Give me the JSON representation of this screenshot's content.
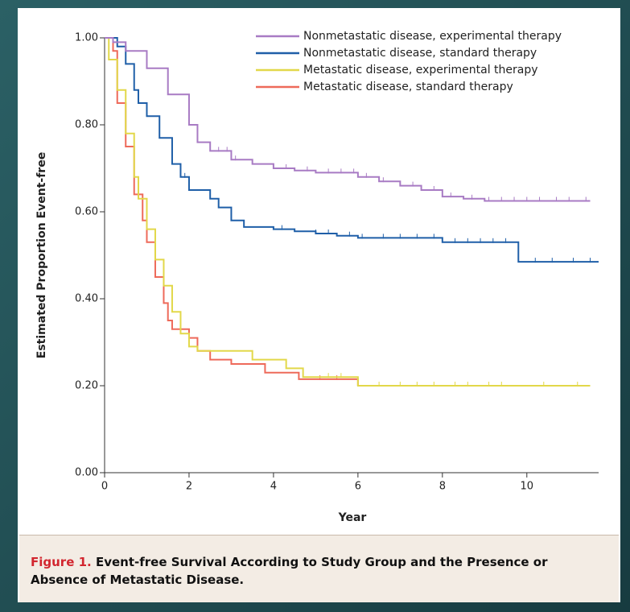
{
  "chart_data": {
    "type": "step",
    "ylabel": "Estimated Proportion Event-free",
    "xlabel": "Year",
    "caption_label": "Figure 1.",
    "caption": "Event-free Survival According to Study Group and the Presence or Absence of Metastatic Disease.",
    "xlim": [
      0,
      11.7
    ],
    "ylim": [
      0,
      1.0
    ],
    "xticks": [
      0,
      2,
      4,
      6,
      8,
      10
    ],
    "yticks": [
      {
        "value": 0,
        "label": "0.00"
      },
      {
        "value": 0.2,
        "label": "0.20"
      },
      {
        "value": 0.4,
        "label": "0.40"
      },
      {
        "value": 0.6,
        "label": "0.60"
      },
      {
        "value": 0.8,
        "label": "0.80"
      },
      {
        "value": 1.0,
        "label": "1.00"
      }
    ],
    "legend": "top-right",
    "series": [
      {
        "name": "Nonmetastatic disease, experimental therapy",
        "color": "#a87bc4",
        "x": [
          0,
          0.2,
          0.5,
          1.0,
          1.5,
          2.0,
          2.2,
          2.5,
          3.0,
          3.5,
          4.0,
          4.5,
          5.0,
          6.0,
          6.5,
          7.0,
          7.5,
          8.0,
          8.5,
          9.0,
          11.5
        ],
        "values": [
          1.0,
          0.99,
          0.97,
          0.93,
          0.87,
          0.8,
          0.76,
          0.74,
          0.72,
          0.71,
          0.7,
          0.695,
          0.69,
          0.68,
          0.67,
          0.66,
          0.65,
          0.635,
          0.63,
          0.625,
          0.625
        ],
        "censored": [
          2.7,
          2.9,
          3.1,
          4.3,
          4.8,
          5.3,
          5.6,
          5.9,
          6.2,
          6.6,
          7.3,
          7.8,
          8.2,
          8.7,
          9.1,
          9.4,
          9.7,
          10.0,
          10.3,
          10.7,
          11.0,
          11.4
        ]
      },
      {
        "name": "Nonmetastatic disease, standard therapy",
        "color": "#1f5fa8",
        "x": [
          0,
          0.3,
          0.5,
          0.7,
          0.8,
          1.0,
          1.3,
          1.6,
          1.8,
          2.0,
          2.5,
          2.7,
          3.0,
          3.3,
          4.0,
          4.5,
          5.0,
          5.5,
          6.0,
          8.0,
          9.8,
          11.7
        ],
        "values": [
          1.0,
          0.98,
          0.94,
          0.88,
          0.85,
          0.82,
          0.77,
          0.71,
          0.68,
          0.65,
          0.63,
          0.61,
          0.58,
          0.565,
          0.56,
          0.555,
          0.55,
          0.545,
          0.54,
          0.53,
          0.485,
          0.485
        ],
        "censored": [
          1.9,
          4.2,
          5.0,
          5.3,
          5.8,
          6.1,
          6.6,
          7.0,
          7.4,
          7.8,
          8.3,
          8.6,
          8.9,
          9.2,
          9.5,
          10.2,
          10.6,
          11.1,
          11.5
        ]
      },
      {
        "name": "Metastatic disease, experimental therapy",
        "color": "#e2d84a",
        "x": [
          0,
          0.1,
          0.3,
          0.5,
          0.7,
          0.8,
          1.0,
          1.2,
          1.4,
          1.6,
          1.8,
          2.0,
          2.2,
          3.5,
          4.3,
          4.7,
          6.0,
          11.5
        ],
        "values": [
          1.0,
          0.95,
          0.88,
          0.78,
          0.68,
          0.63,
          0.56,
          0.49,
          0.43,
          0.37,
          0.32,
          0.29,
          0.28,
          0.26,
          0.24,
          0.22,
          0.2,
          0.2
        ],
        "censored": [
          5.3,
          5.6,
          6.5,
          7.0,
          7.4,
          7.8,
          8.3,
          8.6,
          9.1,
          9.4,
          10.4,
          11.2
        ]
      },
      {
        "name": "Metastatic disease, standard therapy",
        "color": "#ee6a5a",
        "x": [
          0,
          0.2,
          0.3,
          0.5,
          0.7,
          0.9,
          1.0,
          1.2,
          1.4,
          1.5,
          1.6,
          2.0,
          2.2,
          2.5,
          3.0,
          3.8,
          4.6,
          6.0
        ],
        "values": [
          1.0,
          0.97,
          0.85,
          0.75,
          0.64,
          0.58,
          0.53,
          0.45,
          0.39,
          0.35,
          0.33,
          0.31,
          0.28,
          0.26,
          0.25,
          0.23,
          0.215,
          0.2
        ],
        "censored": [
          5.1,
          5.5
        ]
      }
    ]
  }
}
